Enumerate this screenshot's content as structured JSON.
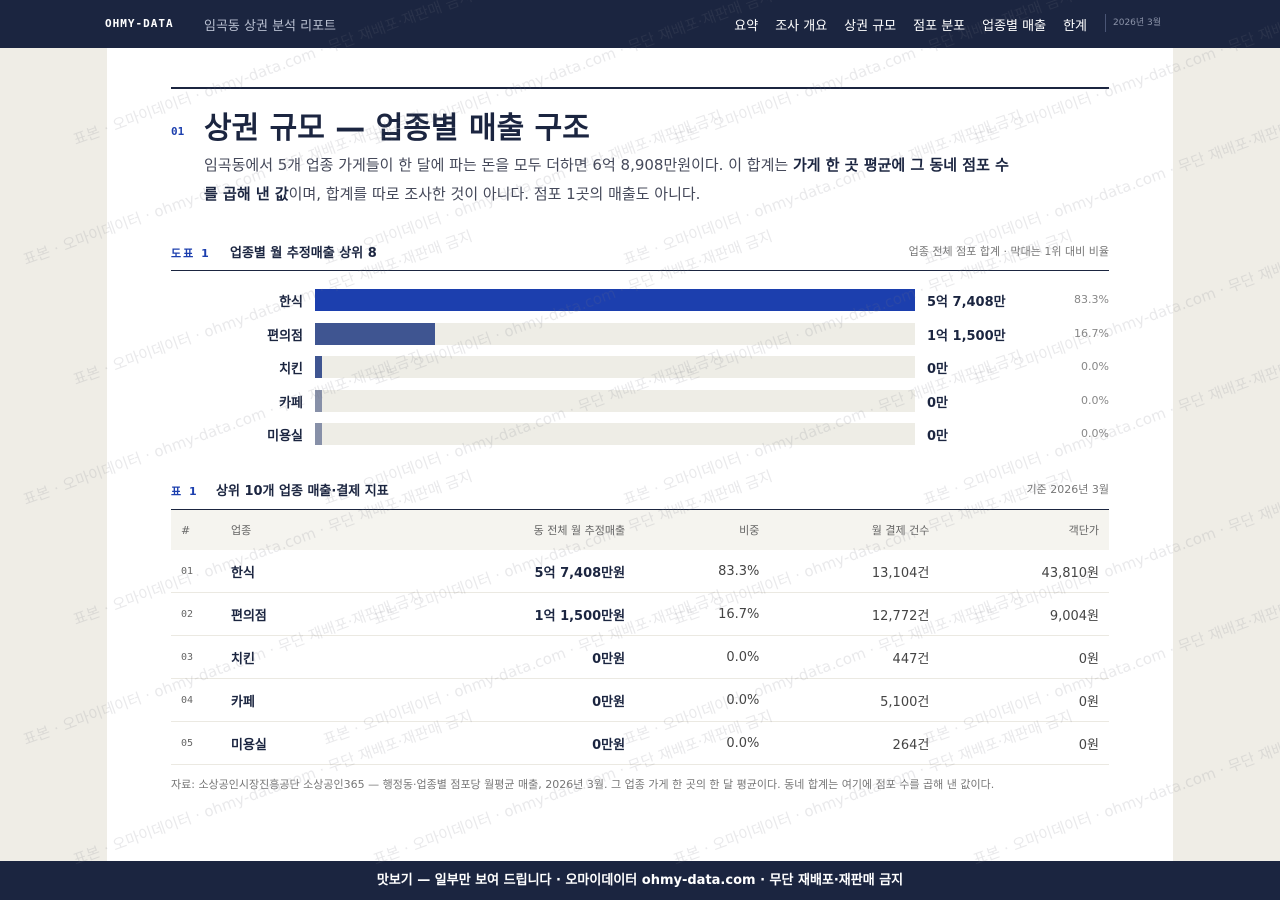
{
  "nav": {
    "brand": "OHMY-DATA",
    "subtitle": "임곡동 상권 분석 리포트",
    "links": [
      "요약",
      "조사 개요",
      "상권 규모",
      "점포 분포",
      "업종별 매출",
      "한계"
    ],
    "date": "2026년 3월"
  },
  "section": {
    "number": "01",
    "title": "상권 규모 — 업종별 매출 구조",
    "paragraph": [
      "임곡동에서 5개 업종 가게들이 한 달에 파는 돈을 모두 더하면 6억 8,908만원이다. 이 합계는 ",
      "가게 한 곳 평균에 그 동네 점포 수를 곱해 낸 값",
      "이며, 합계를 따로 조사한 것이 아니다. 점포 1곳의 매출도 아니다."
    ]
  },
  "chart_data": {
    "type": "bar",
    "orientation": "horizontal",
    "figure_label": "도표 1",
    "title": "업종별 월 추정매출 상위 8",
    "note": "업종 전체 점포 합계 · 막대는 1위 대비 비율",
    "categories": [
      "한식",
      "편의점",
      "치킨",
      "카페",
      "미용실"
    ],
    "values": [
      57408,
      11500,
      0,
      0,
      0
    ],
    "value_labels": [
      "5억 7,408만",
      "1억 1,500만",
      "0만",
      "0만",
      "0만"
    ],
    "share_labels": [
      "83.3%",
      "16.7%",
      "0.0%",
      "0.0%",
      "0.0%"
    ],
    "colors": [
      "#1c3fae",
      "#3f5591",
      "#3f5591",
      "#8790a8",
      "#8790a8"
    ]
  },
  "table": {
    "label": "표 1",
    "title": "상위 10개 업종 매출·결제 지표",
    "note": "기준 2026년 3월",
    "columns": [
      "#",
      "업종",
      "동 전체 월 추정매출",
      "비중",
      "월 결제 건수",
      "객단가"
    ],
    "rows": [
      [
        "01",
        "한식",
        "5억 7,408만원",
        "83.3%",
        "13,104건",
        "43,810원"
      ],
      [
        "02",
        "편의점",
        "1억 1,500만원",
        "16.7%",
        "12,772건",
        "9,004원"
      ],
      [
        "03",
        "치킨",
        "0만원",
        "0.0%",
        "447건",
        "0원"
      ],
      [
        "04",
        "카페",
        "0만원",
        "0.0%",
        "5,100건",
        "0원"
      ],
      [
        "05",
        "미용실",
        "0만원",
        "0.0%",
        "264건",
        "0원"
      ]
    ]
  },
  "source": "자료: 소상공인시장진흥공단 소상공인365 — 행정동·업종별 점포당 월평균 매출, 2026년 3월. 그 업종 가게 한 곳의 한 달 평균이다. 동네 합계는 여기에 점포 수를 곱해 낸 값이다.",
  "banner": "맛보기 — 일부만 보여 드립니다 · 오마이데이터 ohmy-data.com · 무단 재배포·재판매 금지",
  "watermark": "표본 · 오마이데이터 · ohmy-data.com · 무단 재배포·재판매 금지"
}
